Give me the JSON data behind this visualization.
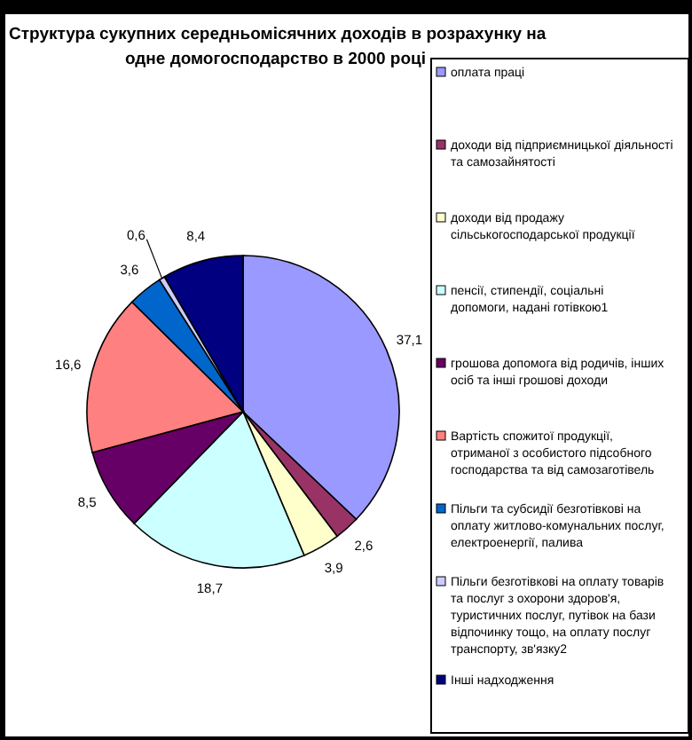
{
  "chart_data": {
    "type": "pie",
    "title": "Структура сукупних середньомісячних доходів в розрахунку на одне домогосподарство в 2000 році",
    "categories": [
      "оплата праці",
      "доходи від підприємницької діяльності та самозайнятості",
      "доходи від продажу сільськогосподарської продукції",
      "пенсії, стипендії, соціальні допомоги, надані готівкою1",
      "грошова допомога від родичів, інших осіб та інші грошові доходи",
      "Вартість спожитої продукції, отриманої з особистого підсобного господарства та від самозаготівель",
      "Пільги та субсидії безготівкові на оплату житлово-комунальних послуг, електроенергії, палива",
      "Пільги безготівкові на оплату товарів та послуг з охорони здоров'я, туристичних послуг, путівок на бази відпочинку тощо, на оплату послуг транспорту, зв'язку2",
      "Інші надходження"
    ],
    "values": [
      37.1,
      2.6,
      3.9,
      18.7,
      8.5,
      16.6,
      3.6,
      0.6,
      8.4
    ],
    "value_labels": [
      "37,1",
      "2,6",
      "3,9",
      "18,7",
      "8,5",
      "16,6",
      "3,6",
      "0,6",
      "8,4"
    ],
    "colors": [
      "#9999ff",
      "#993366",
      "#ffffcc",
      "#ccffff",
      "#660066",
      "#ff8080",
      "#0066cc",
      "#ccccff",
      "#000080"
    ],
    "legend": "right"
  }
}
